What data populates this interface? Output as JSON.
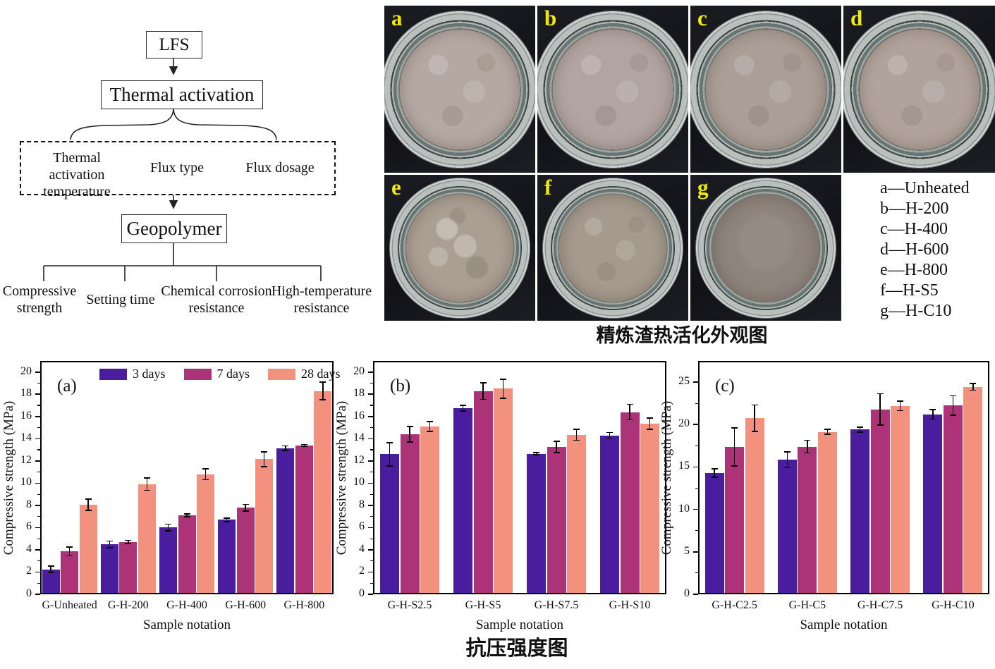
{
  "flowchart": {
    "lfs": "LFS",
    "thermal_activation": "Thermal activation",
    "param_temperature": "Thermal activation temperature",
    "param_flux_type": "Flux type",
    "param_flux_dosage": "Flux dosage",
    "geopolymer": "Geopolymer",
    "out_compressive": "Compressive strength",
    "out_setting": "Setting time",
    "out_chemical": "Chemical corrosion resistance",
    "out_high_temp": "High-temperature resistance"
  },
  "photos": {
    "caption": "精炼渣热活化外观图",
    "items": [
      {
        "label": "a",
        "color": "#b5a8a2",
        "texture": "fine"
      },
      {
        "label": "b",
        "color": "#b2a5a1",
        "texture": "fine"
      },
      {
        "label": "c",
        "color": "#aa9e97",
        "texture": "fine"
      },
      {
        "label": "d",
        "color": "#b0a39b",
        "texture": "fine"
      },
      {
        "label": "e",
        "color": "#ab9f93",
        "texture": "chunky"
      },
      {
        "label": "f",
        "color": "#a59a8d",
        "texture": "fine"
      },
      {
        "label": "g",
        "color": "#8e847b",
        "texture": "smooth"
      }
    ],
    "legend_lines": [
      "a—Unheated",
      "b—H-200",
      "c—H-400",
      "d—H-600",
      "e—H-800",
      "f—H-S5",
      "g—H-C10"
    ]
  },
  "charts": {
    "caption": "抗压强度图",
    "series_colors": [
      "#4a1d9e",
      "#ac3377",
      "#f2917d"
    ],
    "error_bar_color": "#000000"
  },
  "chart_data": [
    {
      "type": "bar",
      "panel_label": "(a)",
      "categories": [
        "G-Unheated",
        "G-H-200",
        "G-H-400",
        "G-H-600",
        "G-H-800"
      ],
      "series": [
        {
          "name": "3 days",
          "values": [
            2.25,
            4.5,
            6.0,
            6.7,
            13.15
          ],
          "errors": [
            0.3,
            0.3,
            0.3,
            0.15,
            0.2
          ]
        },
        {
          "name": "7 days",
          "values": [
            3.85,
            4.7,
            7.1,
            7.8,
            13.4
          ],
          "errors": [
            0.4,
            0.15,
            0.12,
            0.3,
            0.08
          ]
        },
        {
          "name": "28 days",
          "values": [
            8.05,
            9.9,
            10.8,
            12.15,
            18.3
          ],
          "errors": [
            0.5,
            0.55,
            0.5,
            0.65,
            0.8
          ]
        }
      ],
      "xlabel": "Sample notation",
      "ylabel": "Compressive strength (MPa)",
      "ylim": [
        0,
        21
      ],
      "yticks": [
        0,
        2,
        4,
        6,
        8,
        10,
        12,
        14,
        16,
        18,
        20
      ],
      "minor_tick_step": 1,
      "grid": false,
      "legend": true,
      "legend_position": "top-inside"
    },
    {
      "type": "bar",
      "panel_label": "(b)",
      "categories": [
        "G-H-S2.5",
        "G-H-S5",
        "G-H-S7.5",
        "G-H-S10"
      ],
      "series": [
        {
          "name": "3 days",
          "values": [
            12.6,
            16.75,
            12.65,
            14.3
          ],
          "errors": [
            1.05,
            0.25,
            0.1,
            0.25
          ]
        },
        {
          "name": "7 days",
          "values": [
            14.4,
            18.3,
            13.25,
            16.4
          ],
          "errors": [
            0.7,
            0.75,
            0.5,
            0.7
          ]
        },
        {
          "name": "28 days",
          "values": [
            15.1,
            18.5,
            14.35,
            15.35
          ],
          "errors": [
            0.45,
            0.85,
            0.5,
            0.5
          ]
        }
      ],
      "xlabel": "Sample notation",
      "ylabel": "Compressive strength (MPa)",
      "ylim": [
        0,
        21
      ],
      "yticks": [
        0,
        2,
        4,
        6,
        8,
        10,
        12,
        14,
        16,
        18,
        20
      ],
      "minor_tick_step": 1,
      "grid": false,
      "legend": false
    },
    {
      "type": "bar",
      "panel_label": "(c)",
      "categories": [
        "G-H-C2.5",
        "G-H-C5",
        "G-H-C7.5",
        "G-H-C10"
      ],
      "series": [
        {
          "name": "3 days",
          "values": [
            14.3,
            15.85,
            19.4,
            21.2
          ],
          "errors": [
            0.5,
            0.95,
            0.3,
            0.55
          ]
        },
        {
          "name": "7 days",
          "values": [
            17.35,
            17.4,
            21.8,
            22.25
          ],
          "errors": [
            2.25,
            0.75,
            1.85,
            1.15
          ]
        },
        {
          "name": "28 days",
          "values": [
            20.75,
            19.15,
            22.2,
            24.45
          ],
          "errors": [
            1.55,
            0.3,
            0.55,
            0.4
          ]
        }
      ],
      "xlabel": "Sample notation",
      "ylabel": "Compressive strength (MPa)",
      "ylim": [
        0,
        27.5
      ],
      "yticks": [
        0,
        5,
        10,
        15,
        20,
        25
      ],
      "minor_tick_step": 2.5,
      "grid": false,
      "legend": false
    }
  ]
}
